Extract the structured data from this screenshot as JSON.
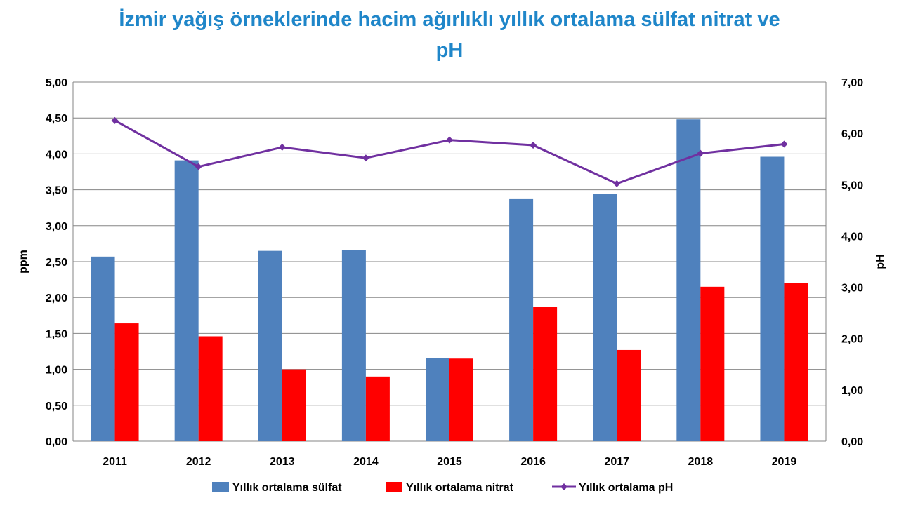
{
  "title_line1": "İzmir yağış örneklerinde hacim ağırlıklı yıllık ortalama sülfat nitrat ve",
  "title_line2": "pH",
  "chart_data": {
    "type": "bar",
    "title": "İzmir yağış örneklerinde hacim ağırlıklı yıllık ortalama sülfat nitrat ve pH",
    "categories": [
      "2011",
      "2012",
      "2013",
      "2014",
      "2015",
      "2016",
      "2017",
      "2018",
      "2019"
    ],
    "ylabel": "ppm",
    "y2label": "pH",
    "ylim": [
      0,
      5
    ],
    "y2lim": [
      0,
      7
    ],
    "yticks": [
      "0,00",
      "0,50",
      "1,00",
      "1,50",
      "2,00",
      "2,50",
      "3,00",
      "3,50",
      "4,00",
      "4,50",
      "5,00"
    ],
    "y2ticks": [
      "0,00",
      "1,00",
      "2,00",
      "3,00",
      "4,00",
      "5,00",
      "6,00",
      "7,00"
    ],
    "grid": true,
    "legend_position": "bottom",
    "series": [
      {
        "name": "Yıllık ortalama sülfat",
        "type": "bar",
        "axis": "left",
        "color": "#4f81bd",
        "values": [
          2.57,
          3.91,
          2.65,
          2.66,
          1.16,
          3.37,
          3.44,
          4.48,
          3.96
        ]
      },
      {
        "name": "Yıllık ortalama nitrat",
        "type": "bar",
        "axis": "left",
        "color": "#ff0000",
        "values": [
          1.64,
          1.46,
          1.0,
          0.9,
          1.15,
          1.87,
          1.27,
          2.15,
          2.2
        ]
      },
      {
        "name": "Yıllık ortalama pH",
        "type": "line",
        "axis": "right",
        "color": "#7030a0",
        "values": [
          6.25,
          5.35,
          5.73,
          5.52,
          5.87,
          5.77,
          5.02,
          5.61,
          5.79
        ]
      }
    ]
  }
}
